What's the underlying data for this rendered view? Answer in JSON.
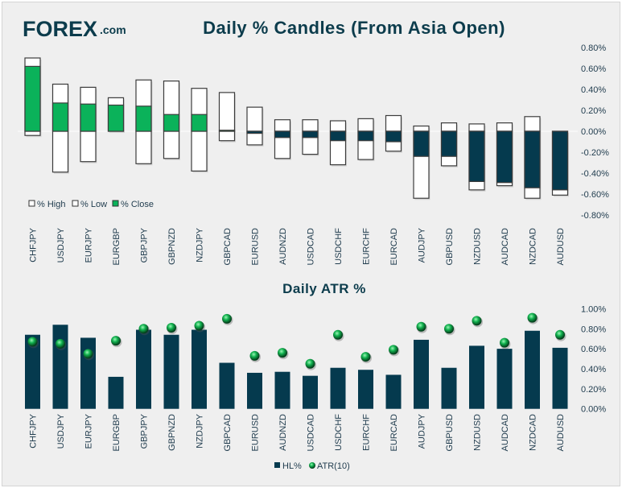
{
  "logo": {
    "text_main": "FOREX",
    "text_suffix": ".com"
  },
  "colors": {
    "green": "#0bb25a",
    "navy": "#053a4e",
    "white": "#ffffff",
    "border": "#3c3c3c"
  },
  "chart_data": [
    {
      "type": "bar",
      "subtype": "floating-candle",
      "title": "Daily % Candles (From Asia Open)",
      "categories": [
        "CHFJPY",
        "USDJPY",
        "EURJPY",
        "EURGBP",
        "GBPJPY",
        "GBPNZD",
        "NZDJPY",
        "GBPCAD",
        "EURUSD",
        "AUDNZD",
        "USDCAD",
        "USDCHF",
        "EURCHF",
        "EURCAD",
        "AUDJPY",
        "GBPUSD",
        "NZDUSD",
        "AUDCAD",
        "NZDCAD",
        "AUDUSD"
      ],
      "series": [
        {
          "name": "% High",
          "values": [
            0.7,
            0.45,
            0.42,
            0.32,
            0.49,
            0.48,
            0.41,
            0.37,
            0.23,
            0.11,
            0.11,
            0.1,
            0.12,
            0.15,
            0.05,
            0.08,
            0.07,
            0.08,
            0.14,
            0.0
          ]
        },
        {
          "name": "% Low",
          "values": [
            -0.04,
            -0.39,
            -0.29,
            0.0,
            -0.31,
            -0.26,
            -0.38,
            -0.09,
            -0.13,
            -0.26,
            -0.22,
            -0.32,
            -0.27,
            -0.19,
            -0.64,
            -0.33,
            -0.56,
            -0.52,
            -0.64,
            -0.61
          ]
        },
        {
          "name": "% Close",
          "values": [
            0.62,
            0.27,
            0.26,
            0.25,
            0.24,
            0.16,
            0.16,
            0.01,
            -0.02,
            -0.06,
            -0.06,
            -0.09,
            -0.09,
            -0.1,
            -0.24,
            -0.24,
            -0.48,
            -0.49,
            -0.54,
            -0.56
          ]
        }
      ],
      "ylim": [
        -0.8,
        0.8
      ],
      "yticks": [
        "0.80%",
        "0.60%",
        "0.40%",
        "0.20%",
        "0.00%",
        "-0.20%",
        "-0.40%",
        "-0.60%",
        "-0.80%"
      ],
      "legend": [
        "% High",
        "% Low",
        "% Close"
      ],
      "legend_position": "bottom-left"
    },
    {
      "type": "bar",
      "subtype": "bar-with-markers",
      "title": "Daily ATR %",
      "categories": [
        "CHFJPY",
        "USDJPY",
        "EURJPY",
        "EURGBP",
        "GBPJPY",
        "GBPNZD",
        "NZDJPY",
        "GBPCAD",
        "EURUSD",
        "AUDNZD",
        "USDCAD",
        "USDCHF",
        "EURCHF",
        "EURCAD",
        "AUDJPY",
        "GBPUSD",
        "NZDUSD",
        "AUDCAD",
        "NZDCAD",
        "AUDUSD"
      ],
      "series": [
        {
          "name": "HL%",
          "values": [
            0.74,
            0.84,
            0.71,
            0.32,
            0.79,
            0.74,
            0.79,
            0.46,
            0.36,
            0.37,
            0.33,
            0.41,
            0.39,
            0.34,
            0.69,
            0.41,
            0.63,
            0.6,
            0.78,
            0.61
          ]
        },
        {
          "name": "ATR(10)",
          "values": [
            0.67,
            0.65,
            0.55,
            0.68,
            0.8,
            0.81,
            0.83,
            0.9,
            0.53,
            0.56,
            0.45,
            0.74,
            0.52,
            0.59,
            0.82,
            0.8,
            0.88,
            0.66,
            0.91,
            0.74
          ]
        }
      ],
      "ylim": [
        0,
        1.0
      ],
      "yticks": [
        "1.00%",
        "0.80%",
        "0.60%",
        "0.40%",
        "0.20%",
        "0.00%"
      ],
      "legend": [
        "HL%",
        "ATR(10)"
      ],
      "legend_position": "bottom"
    }
  ]
}
